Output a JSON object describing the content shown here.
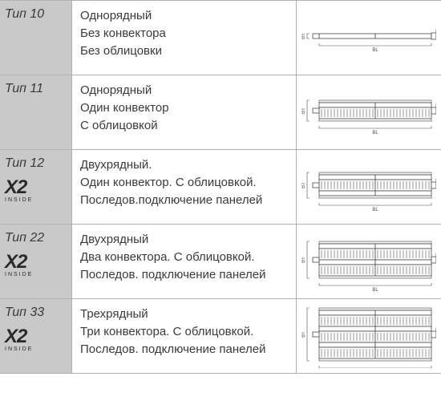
{
  "rows": [
    {
      "type_label": "Тип 10",
      "has_x2": false,
      "desc_lines": [
        "Однорядный",
        "Без конвектора",
        "Без облицовки"
      ],
      "diagram": {
        "panels": 1,
        "convectors": 0,
        "cladding": false
      }
    },
    {
      "type_label": "Тип 11",
      "has_x2": false,
      "desc_lines": [
        "Однорядный",
        "Один конвектор",
        "С облицовкой"
      ],
      "diagram": {
        "panels": 1,
        "convectors": 1,
        "cladding": true
      }
    },
    {
      "type_label": "Тип 12",
      "has_x2": true,
      "x2_text": "X2",
      "inside_text": "INSIDE",
      "desc_lines": [
        "Двухрядный.",
        "Один конвектор. С облицовкой.",
        "Последов.подключение панелей"
      ],
      "diagram": {
        "panels": 2,
        "convectors": 1,
        "cladding": true
      }
    },
    {
      "type_label": "Тип 22",
      "has_x2": true,
      "x2_text": "X2",
      "inside_text": "INSIDE",
      "desc_lines": [
        "Двухрядный",
        "Два конвектора. С облицовкой.",
        "Последов. подключение панелей"
      ],
      "diagram": {
        "panels": 2,
        "convectors": 2,
        "cladding": true
      }
    },
    {
      "type_label": "Тип 33",
      "has_x2": true,
      "x2_text": "X2",
      "inside_text": "INSIDE",
      "desc_lines": [
        "Трехрядный",
        "Три конвектора. С облицовкой.",
        "Последов. подключение панелей"
      ],
      "diagram": {
        "panels": 3,
        "convectors": 3,
        "cladding": true
      }
    }
  ],
  "colors": {
    "header_bg": "#c9c9c9",
    "border": "#b0b0b0",
    "text": "#3a3a3a",
    "diagram_stroke": "#4a4a4a",
    "diagram_fill": "#ffffff",
    "hatch": "#8a8a8a"
  },
  "dim_labels": {
    "bt": "BT",
    "bl": "BL"
  }
}
